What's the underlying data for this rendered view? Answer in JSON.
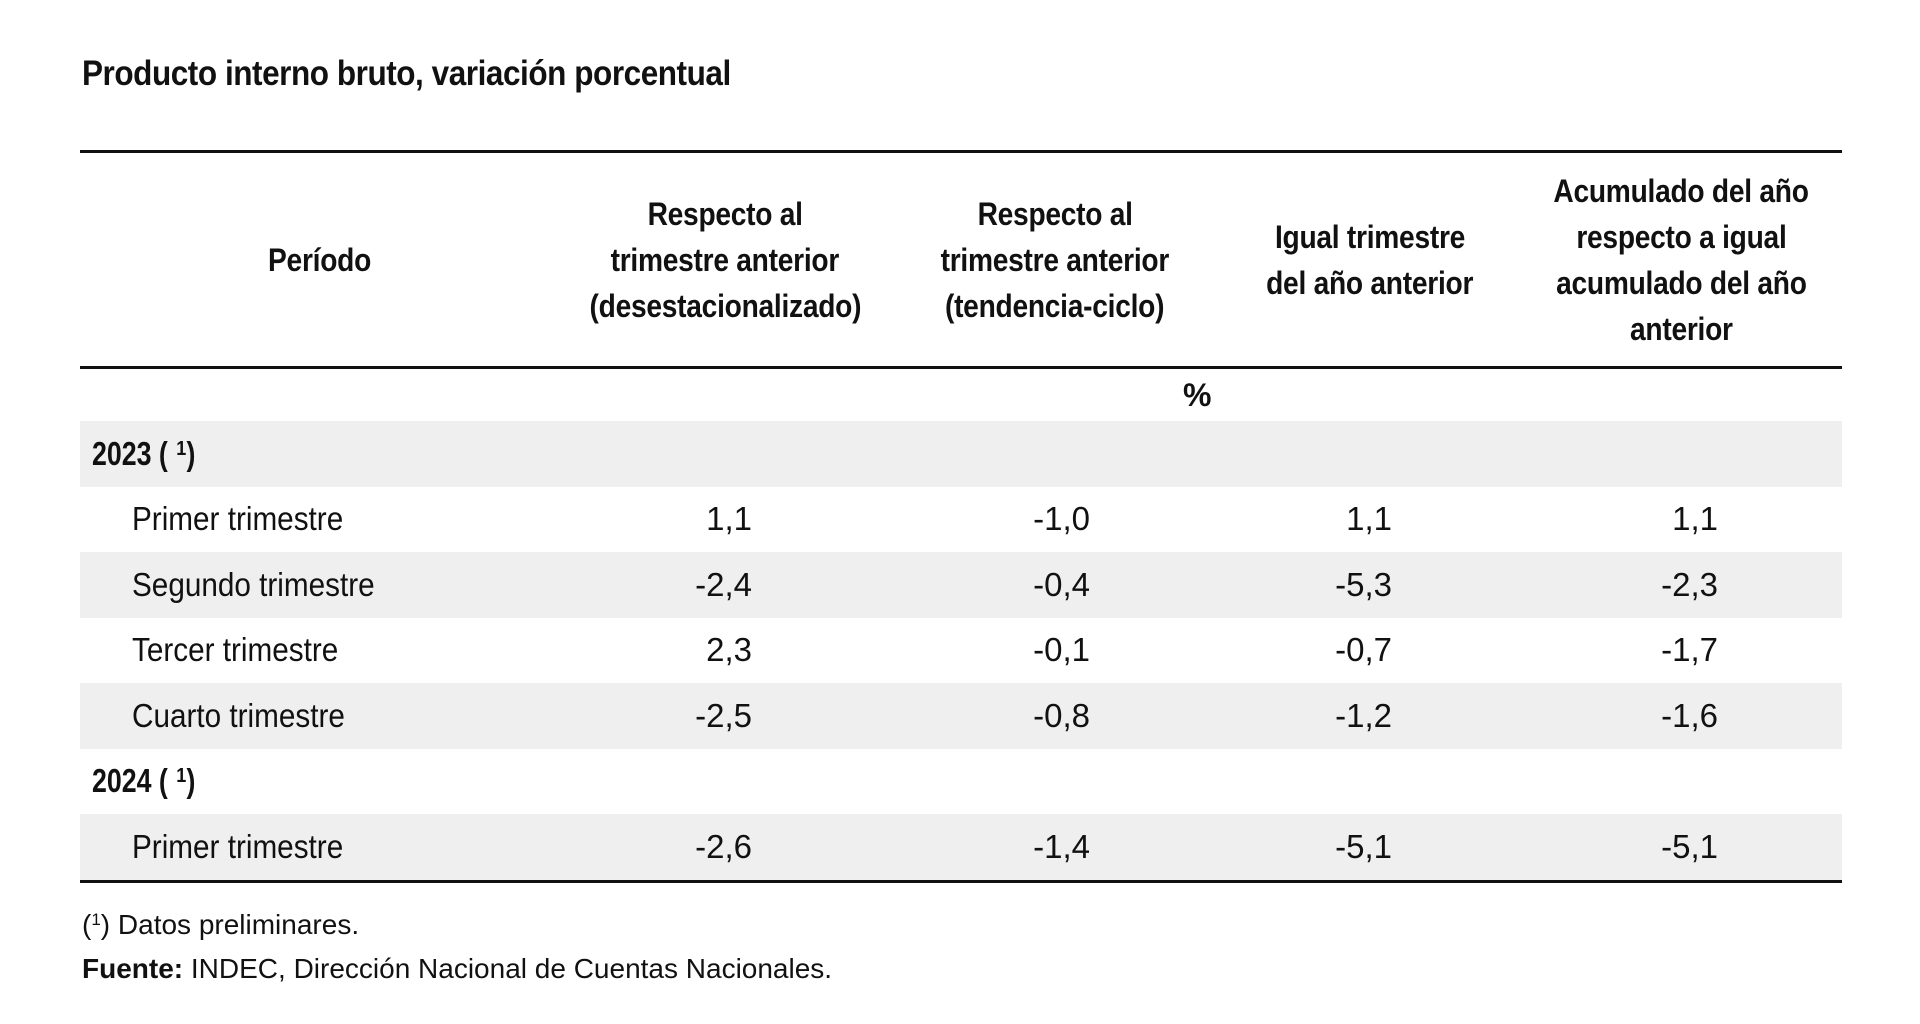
{
  "title": "Producto interno bruto, variación porcentual",
  "headers": {
    "periodo": "Período",
    "col1": [
      "Respecto al",
      "trimestre anterior",
      "(desestacionalizado)"
    ],
    "col2": [
      "Respecto al",
      "trimestre anterior",
      "(tendencia-ciclo)"
    ],
    "col3": [
      "Igual trimestre",
      "del año anterior"
    ],
    "col4": [
      "Acumulado del año",
      "respecto a igual",
      "acumulado del año",
      "anterior"
    ]
  },
  "unit": "%",
  "groups": [
    {
      "year": "2023 (",
      "mark": "1",
      "close": ")",
      "rows": [
        {
          "label": "Primer trimestre",
          "values": [
            "1,1",
            "-1,0",
            "1,1",
            "1,1"
          ]
        },
        {
          "label": "Segundo trimestre",
          "values": [
            "-2,4",
            "-0,4",
            "-5,3",
            "-2,3"
          ]
        },
        {
          "label": "Tercer trimestre",
          "values": [
            "2,3",
            "-0,1",
            "-0,7",
            "-1,7"
          ]
        },
        {
          "label": "Cuarto trimestre",
          "values": [
            "-2,5",
            "-0,8",
            "-1,2",
            "-1,6"
          ]
        }
      ]
    },
    {
      "year": "2024 (",
      "mark": "1",
      "close": ")",
      "rows": [
        {
          "label": "Primer trimestre",
          "values": [
            "-2,6",
            "-1,4",
            "-5,1",
            "-5,1"
          ]
        }
      ]
    }
  ],
  "notes": {
    "footnote_open": "(",
    "footnote_mark": "1",
    "footnote_text": ") Datos preliminares.",
    "source_label": "Fuente:",
    "source_text": " INDEC, Dirección Nacional de Cuentas Nacionales."
  }
}
